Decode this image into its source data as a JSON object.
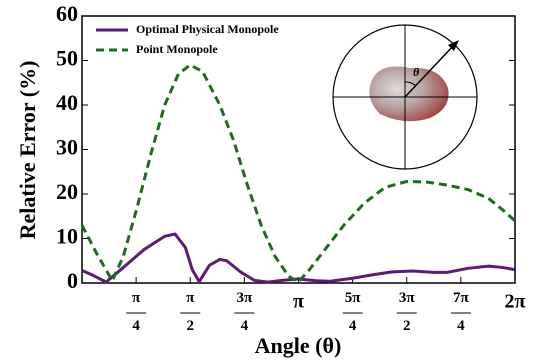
{
  "chart_data": {
    "type": "line",
    "xlabel": "Angle (θ)",
    "ylabel": "Relative Error (%)",
    "xlim": [
      0,
      6.2832
    ],
    "ylim": [
      0,
      60
    ],
    "xticks": [
      {
        "value": 0.7854,
        "label": "π/4"
      },
      {
        "value": 1.5708,
        "label": "π/2"
      },
      {
        "value": 2.3562,
        "label": "3π/4"
      },
      {
        "value": 3.1416,
        "label": "π"
      },
      {
        "value": 3.927,
        "label": "5π/4"
      },
      {
        "value": 4.7124,
        "label": "3π/2"
      },
      {
        "value": 5.4978,
        "label": "7π/4"
      },
      {
        "value": 6.2832,
        "label": "2π"
      }
    ],
    "yticks": [
      0,
      10,
      20,
      30,
      40,
      50,
      60
    ],
    "legend": "upper left",
    "inset_label": "θ",
    "series": [
      {
        "name": "Optimal Physical Monopole",
        "color": "#5c1a7a",
        "line_style": "solid",
        "x": [
          0,
          0.15,
          0.35,
          0.6,
          0.9,
          1.2,
          1.35,
          1.5,
          1.6,
          1.7,
          1.85,
          2.0,
          2.1,
          2.3,
          2.5,
          2.7,
          2.9,
          3.14,
          3.4,
          3.6,
          3.9,
          4.2,
          4.5,
          4.8,
          5.1,
          5.3,
          5.6,
          5.9,
          6.1,
          6.28
        ],
        "values": [
          2.8,
          1.8,
          0.2,
          3.5,
          7.5,
          10.5,
          11,
          8,
          3,
          0.3,
          4,
          5.3,
          5,
          2.5,
          0.6,
          0.2,
          0.6,
          0.9,
          0.5,
          0.4,
          1,
          1.8,
          2.5,
          2.7,
          2.4,
          2.4,
          3.3,
          3.8,
          3.5,
          3
        ]
      },
      {
        "name": "Point Monopole",
        "color": "#1e6b1e",
        "line_style": "dashed",
        "x": [
          0,
          0.2,
          0.44,
          0.6,
          0.8,
          1.0,
          1.2,
          1.4,
          1.57,
          1.75,
          2.0,
          2.2,
          2.4,
          2.6,
          2.8,
          3.0,
          3.14,
          3.3,
          3.5,
          3.8,
          4.1,
          4.4,
          4.71,
          5.0,
          5.3,
          5.6,
          5.9,
          6.1,
          6.28
        ],
        "values": [
          13,
          7,
          0.5,
          6,
          17,
          29,
          40,
          47,
          49,
          47.5,
          40,
          32,
          22,
          13,
          6,
          1.5,
          0.2,
          3,
          7,
          13,
          18,
          21.5,
          22.8,
          22.7,
          22,
          21,
          19,
          16.5,
          14
        ]
      }
    ]
  }
}
